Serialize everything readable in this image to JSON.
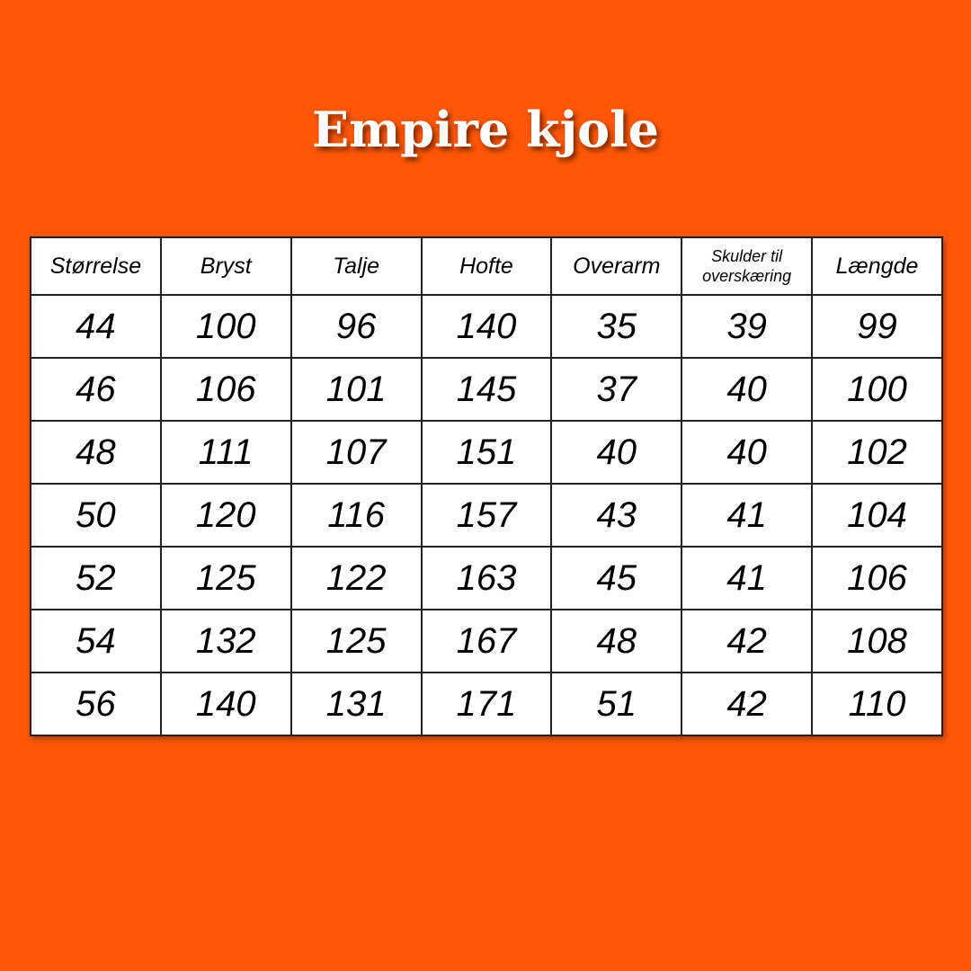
{
  "title": "Empire kjole",
  "colors": {
    "background": "#ff5705",
    "table": "#ffffff",
    "text": "#000000"
  },
  "table": {
    "headers": [
      "Størrelse",
      "Bryst",
      "Talje",
      "Hofte",
      "Overarm",
      "Skulder til overskæring",
      "Længde"
    ],
    "rows": [
      [
        "44",
        "100",
        "96",
        "140",
        "35",
        "39",
        "99"
      ],
      [
        "46",
        "106",
        "101",
        "145",
        "37",
        "40",
        "100"
      ],
      [
        "48",
        "111",
        "107",
        "151",
        "40",
        "40",
        "102"
      ],
      [
        "50",
        "120",
        "116",
        "157",
        "43",
        "41",
        "104"
      ],
      [
        "52",
        "125",
        "122",
        "163",
        "45",
        "41",
        "106"
      ],
      [
        "54",
        "132",
        "125",
        "167",
        "48",
        "42",
        "108"
      ],
      [
        "56",
        "140",
        "131",
        "171",
        "51",
        "42",
        "110"
      ]
    ]
  }
}
